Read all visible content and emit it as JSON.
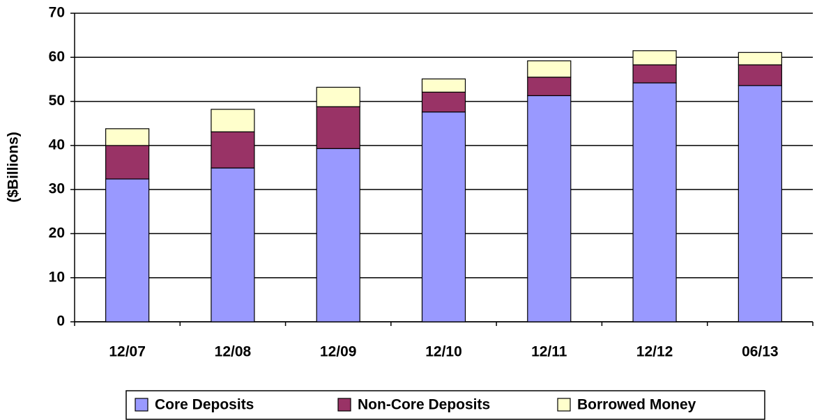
{
  "chart_data": {
    "type": "stacked_bar",
    "y_label": "($Billions)",
    "categories": [
      "12/07",
      "12/08",
      "12/09",
      "12/10",
      "12/11",
      "12/12",
      "06/13"
    ],
    "series": [
      {
        "name": "Core Deposits",
        "color": "#9999ff",
        "values": [
          32.4,
          34.9,
          39.3,
          47.6,
          51.3,
          54.2,
          53.6
        ]
      },
      {
        "name": "Non-Core Deposits",
        "color": "#993366",
        "values": [
          7.6,
          8.2,
          9.5,
          4.5,
          4.2,
          4.1,
          4.7
        ]
      },
      {
        "name": "Borrowed Money",
        "color": "#ffffcc",
        "values": [
          3.8,
          5.1,
          4.4,
          3.0,
          3.7,
          3.2,
          2.8
        ]
      }
    ],
    "ylim": [
      0,
      70
    ],
    "yticks": [
      0,
      10,
      20,
      30,
      40,
      50,
      60,
      70
    ],
    "grid": true,
    "legend": "bottom"
  }
}
